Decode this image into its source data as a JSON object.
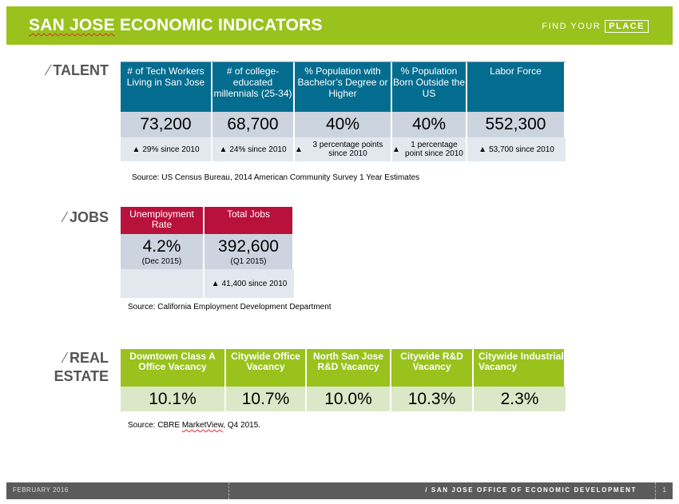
{
  "header": {
    "title_a": "SAN JOSE",
    "title_b": " ECONOMIC INDICATORS",
    "brand_a": "FIND YOUR",
    "brand_b": "PLACE"
  },
  "talent": {
    "label": "TALENT",
    "columns": [
      {
        "header": "# of Tech Workers Living in San Jose",
        "value": "73,200",
        "change": "29% since 2010"
      },
      {
        "header": "# of college-educated millennials (25-34)",
        "value": "68,700",
        "change": "24% since 2010"
      },
      {
        "header": "% Population with Bachelor’s Degree or Higher",
        "value": "40%",
        "change": "3 percentage points since 2010"
      },
      {
        "header": "% Population Born Outside the US",
        "value": "40%",
        "change": "1 percentage point since 2010"
      },
      {
        "header": "Labor Force",
        "value": "552,300",
        "change": "53,700 since 2010"
      }
    ],
    "source": "Source: US Census Bureau, 2014 American Community Survey 1 Year Estimates"
  },
  "jobs": {
    "label": "JOBS",
    "columns": [
      {
        "header": "Unemployment Rate",
        "value": "4.2%",
        "period": "(Dec 2015)",
        "change": ""
      },
      {
        "header": "Total Jobs",
        "value": "392,600",
        "period": "(Q1 2015)",
        "change": "41,400 since 2010"
      }
    ],
    "source": "Source: California Employment Development Department"
  },
  "real_estate": {
    "label_line1": "REAL",
    "label_line2": "ESTATE",
    "columns": [
      {
        "header": "Downtown Class A Office Vacancy",
        "value": "10.1%"
      },
      {
        "header": "Citywide Office Vacancy",
        "value": "10.7%"
      },
      {
        "header": "North San Jose R&D Vacancy",
        "value": "10.0%"
      },
      {
        "header": "Citywide R&D Vacancy",
        "value": "10.3%"
      },
      {
        "header": "Citywide Industrial Vacancy",
        "value": "2.3%"
      }
    ],
    "source_a": "Source: CBRE ",
    "source_b": "MarketView",
    "source_c": ", Q4 2015."
  },
  "footer": {
    "date": "FEBRUARY 2016",
    "org": "/ SAN JOSE OFFICE OF ECONOMIC DEVELOPMENT",
    "page": "1"
  },
  "icons": {
    "change": "up-arrow-icon"
  },
  "colors": {
    "accent_green": "#99c21d",
    "talent_blue": "#046d8f",
    "jobs_red": "#b8113b",
    "footer_gray": "#5b5b5b"
  }
}
